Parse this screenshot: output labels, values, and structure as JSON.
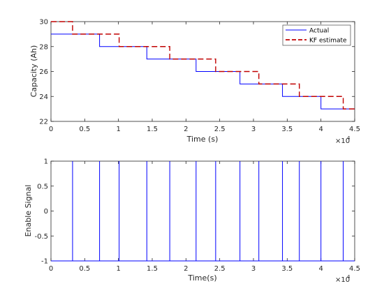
{
  "figure": {
    "colors": {
      "actual": "#0000ff",
      "kf": "#c00000",
      "axis": "#262626",
      "background": "#ffffff"
    }
  },
  "chart_data": [
    {
      "type": "line",
      "title": "",
      "xlabel": "Time (s)",
      "ylabel": "Capacity (Ah)",
      "x_exponent_label": "×10",
      "x_exponent": "4",
      "xlim": [
        0,
        45000
      ],
      "ylim": [
        22,
        30
      ],
      "xticks": [
        0,
        5000,
        10000,
        15000,
        20000,
        25000,
        30000,
        35000,
        40000,
        45000
      ],
      "xtick_labels": [
        "0",
        "0.5",
        "1",
        "1.5",
        "2",
        "2.5",
        "3",
        "3.5",
        "4",
        "4.5"
      ],
      "yticks": [
        22,
        24,
        26,
        28,
        30
      ],
      "ytick_labels": [
        "22",
        "24",
        "26",
        "28",
        "30"
      ],
      "grid": false,
      "legend_position": "top-right",
      "series": [
        {
          "name": "Actual",
          "style": "solid",
          "color": "#0000ff",
          "x": [
            0,
            7200,
            7200,
            14200,
            14200,
            21500,
            21500,
            28000,
            28000,
            34300,
            34300,
            40000,
            40000,
            45000
          ],
          "y": [
            29,
            29,
            28,
            28,
            27,
            27,
            26,
            26,
            25,
            25,
            24,
            24,
            23,
            23
          ]
        },
        {
          "name": "KF estimate",
          "style": "dashed",
          "color": "#c00000",
          "x": [
            0,
            3200,
            3200,
            10100,
            10100,
            17600,
            17600,
            24400,
            24400,
            30800,
            30800,
            36800,
            36800,
            43300,
            43300,
            45000
          ],
          "y": [
            30,
            30,
            29,
            29,
            28,
            28,
            27,
            27,
            26,
            26,
            25,
            25,
            24,
            24,
            23,
            23
          ]
        }
      ]
    },
    {
      "type": "line",
      "title": "",
      "xlabel": "Time(s)",
      "ylabel": "Enable Signal",
      "x_exponent_label": "×10",
      "x_exponent": "4",
      "xlim": [
        0,
        45000
      ],
      "ylim": [
        -1,
        1
      ],
      "xticks": [
        0,
        5000,
        10000,
        15000,
        20000,
        25000,
        30000,
        35000,
        40000,
        45000
      ],
      "xtick_labels": [
        "0",
        "0.5",
        "1",
        "1.5",
        "2",
        "2.5",
        "3",
        "3.5",
        "4",
        "4.5"
      ],
      "yticks": [
        -1,
        -0.5,
        0,
        0.5,
        1
      ],
      "ytick_labels": [
        "-1",
        "-0.5",
        "0",
        "0.5",
        "1"
      ],
      "grid": false,
      "series": [
        {
          "style": "solid",
          "color": "#0000ff",
          "pulse_times": [
            3200,
            7200,
            10100,
            14200,
            17600,
            21500,
            24400,
            28000,
            30800,
            34300,
            36800,
            40000,
            43300
          ],
          "low": -1,
          "high": 1
        }
      ]
    }
  ]
}
